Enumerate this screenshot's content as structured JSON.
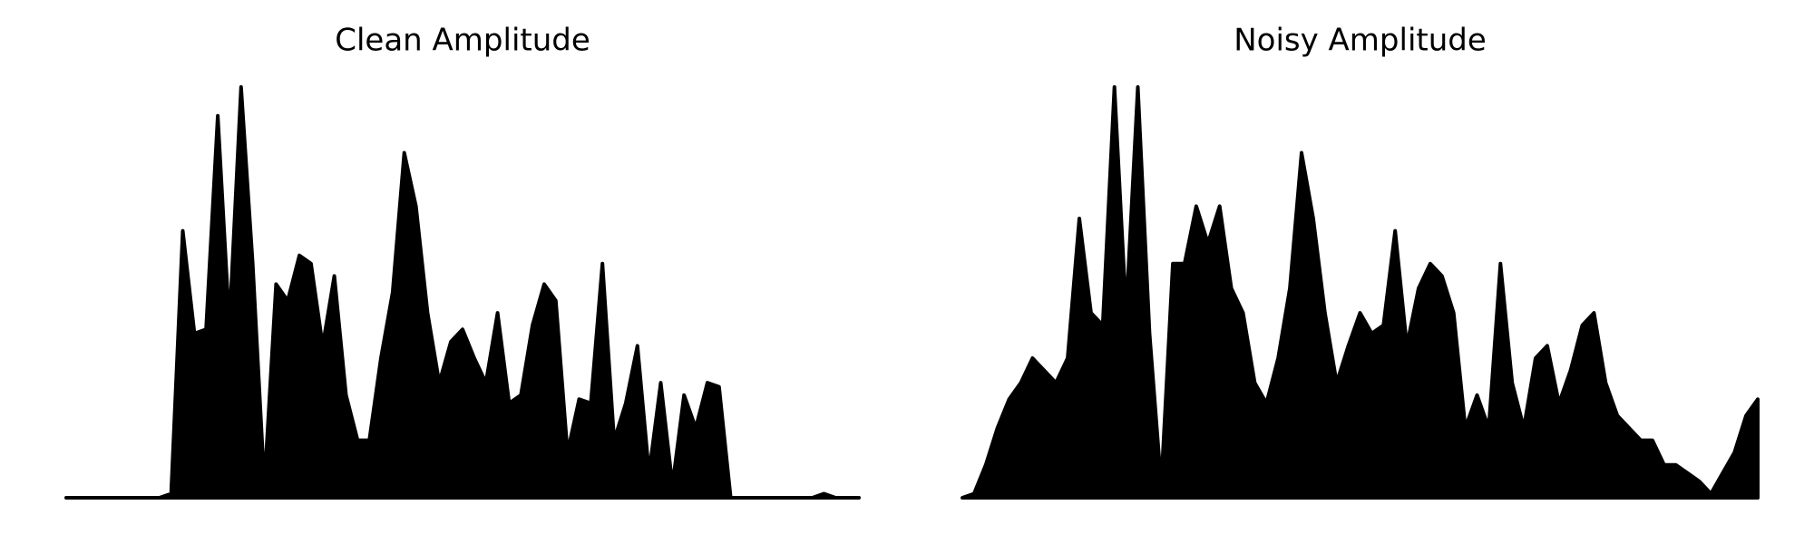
{
  "chart_data": [
    {
      "type": "area",
      "title": "Clean Amplitude",
      "color": "#000000",
      "ylim": [
        0,
        100
      ],
      "values": [
        0,
        0,
        0,
        0,
        0,
        0,
        0,
        0,
        0,
        1,
        65,
        40,
        41,
        93,
        42,
        100,
        57,
        3,
        52,
        48,
        59,
        57,
        37,
        54,
        25,
        14,
        14,
        34,
        50,
        84,
        71,
        45,
        28,
        38,
        41,
        34,
        28,
        45,
        23,
        25,
        42,
        52,
        48,
        11,
        24,
        23,
        57,
        14,
        23,
        37,
        6,
        28,
        3,
        25,
        17,
        28,
        27,
        0,
        0,
        0,
        0,
        0,
        0,
        0,
        0,
        1,
        0,
        0,
        0
      ]
    },
    {
      "type": "area",
      "title": "Noisy Amplitude",
      "color": "#000000",
      "ylim": [
        0,
        100
      ],
      "values": [
        0,
        1,
        8,
        17,
        24,
        28,
        34,
        31,
        28,
        34,
        68,
        45,
        42,
        100,
        45,
        100,
        40,
        3,
        57,
        57,
        71,
        62,
        71,
        51,
        45,
        28,
        23,
        34,
        51,
        84,
        68,
        45,
        28,
        37,
        45,
        40,
        42,
        65,
        37,
        51,
        57,
        54,
        45,
        17,
        25,
        17,
        57,
        28,
        17,
        34,
        37,
        23,
        31,
        42,
        45,
        28,
        20,
        17,
        14,
        14,
        8,
        8,
        6,
        4,
        1,
        6,
        11,
        20,
        24
      ]
    }
  ]
}
